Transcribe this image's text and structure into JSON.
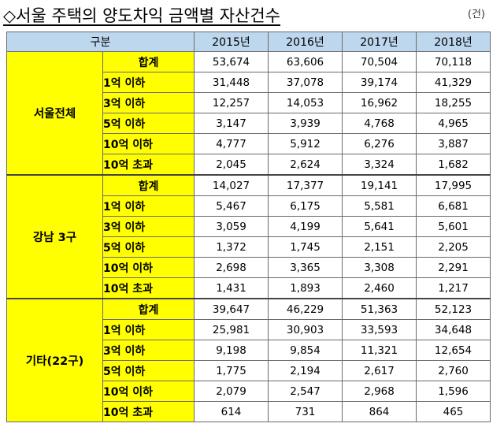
{
  "title": "◇서울 주택의 양도차익 금액별 자산건수",
  "unit": "(건)",
  "header": {
    "category": "구분",
    "years": [
      "2015년",
      "2016년",
      "2017년",
      "2018년"
    ]
  },
  "groups": [
    {
      "name": "서울전체",
      "rows": [
        {
          "label": "합계",
          "values": [
            "53,674",
            "63,606",
            "70,504",
            "70,118"
          ]
        },
        {
          "label": "1억 이하",
          "values": [
            "31,448",
            "37,078",
            "39,174",
            "41,329"
          ]
        },
        {
          "label": "3억 이하",
          "values": [
            "12,257",
            "14,053",
            "16,962",
            "18,255"
          ]
        },
        {
          "label": "5억 이하",
          "values": [
            "3,147",
            "3,939",
            "4,768",
            "4,965"
          ]
        },
        {
          "label": "10억 이하",
          "values": [
            "4,777",
            "5,912",
            "6,276",
            "3,887"
          ]
        },
        {
          "label": "10억 초과",
          "values": [
            "2,045",
            "2,624",
            "3,324",
            "1,682"
          ]
        }
      ]
    },
    {
      "name": "강남 3구",
      "rows": [
        {
          "label": "합계",
          "values": [
            "14,027",
            "17,377",
            "19,141",
            "17,995"
          ]
        },
        {
          "label": "1억 이하",
          "values": [
            "5,467",
            "6,175",
            "5,581",
            "6,681"
          ]
        },
        {
          "label": "3억 이하",
          "values": [
            "3,059",
            "4,199",
            "5,641",
            "5,601"
          ]
        },
        {
          "label": "5억 이하",
          "values": [
            "1,372",
            "1,745",
            "2,151",
            "2,205"
          ]
        },
        {
          "label": "10억 이하",
          "values": [
            "2,698",
            "3,365",
            "3,308",
            "2,291"
          ]
        },
        {
          "label": "10억 초과",
          "values": [
            "1,431",
            "1,893",
            "2,460",
            "1,217"
          ]
        }
      ]
    },
    {
      "name": "기타(22구)",
      "rows": [
        {
          "label": "합계",
          "values": [
            "39,647",
            "46,229",
            "51,363",
            "52,123"
          ]
        },
        {
          "label": "1억 이하",
          "values": [
            "25,981",
            "30,903",
            "33,593",
            "34,648"
          ]
        },
        {
          "label": "3억 이하",
          "values": [
            "9,198",
            "9,854",
            "11,321",
            "12,654"
          ]
        },
        {
          "label": "5억 이하",
          "values": [
            "1,775",
            "2,194",
            "2,617",
            "2,760"
          ]
        },
        {
          "label": "10억 이하",
          "values": [
            "2,079",
            "2,547",
            "2,968",
            "1,596"
          ]
        },
        {
          "label": "10억 초과",
          "values": [
            "614",
            "731",
            "864",
            "465"
          ]
        }
      ]
    }
  ],
  "colors": {
    "header_bg": "#bdd7ee",
    "label_bg": "#ffff00"
  }
}
